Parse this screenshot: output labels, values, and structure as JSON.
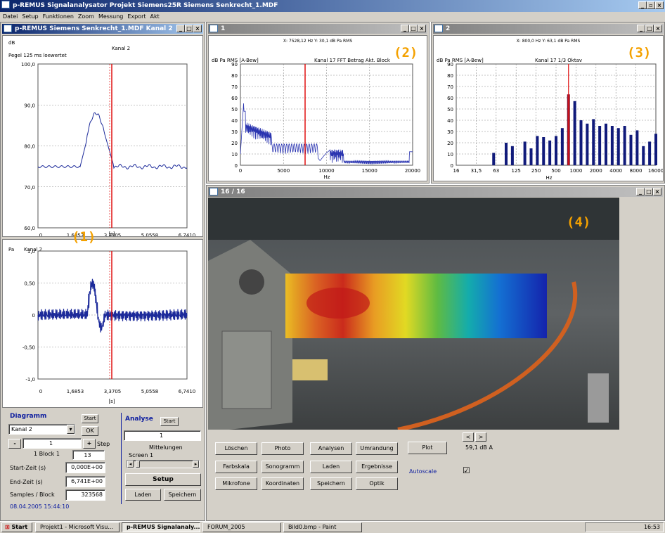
{
  "app": {
    "title": "p-REMUS Signalanalysator Projekt Siemens25R Siemens Senkrecht_1.MDF"
  },
  "menu": [
    "Datei",
    "Setup",
    "Funktionen",
    "Zoom",
    "Messung",
    "Export",
    "Akt"
  ],
  "annotations": [
    "(1)",
    "(2)",
    "(3)",
    "(4)"
  ],
  "win1": {
    "title": "p-REMUS   Siemens Senkrecht_1.MDF   Kanal 2",
    "top_unit": "dB",
    "top_channel": "Kanal 2",
    "top_note": "Pegel 125 ms loewertet",
    "yticks_top": [
      "100,0",
      "90,0",
      "80,0",
      "70,0",
      "60,0"
    ],
    "xticks": [
      "0",
      "1,6853",
      "3,3705",
      "5,0558",
      "6,7410"
    ],
    "xunit": "[s]",
    "bottom_unit": "Pa",
    "bottom_channel": "Kanal 2",
    "yticks_bottom": [
      "1,0",
      "0,50",
      "0",
      "-0,50",
      "-1,0"
    ]
  },
  "controls": {
    "diagramm": "Diagramm",
    "start": "Start",
    "kanal_value": "Kanal 2",
    "ok": "OK",
    "minus": "-",
    "block_value": "1",
    "plus": "+",
    "step": "Step",
    "block_label": "1 Block 1",
    "block_count": "13",
    "start_zeit_label": "Start-Zeit (s)",
    "start_zeit_value": "0,000E+00",
    "end_zeit_label": "End-Zeit (s)",
    "end_zeit_value": "6,741E+00",
    "samples_label": "Samples / Block",
    "samples_value": "323568",
    "datetime": "08.04.2005  15:44:10",
    "analyse": "Analyse",
    "analyse_start": "Start",
    "mitt_value": "1",
    "mitt_label": "Mittelungen",
    "screen_label": "Screen 1",
    "setup": "Setup",
    "laden": "Laden",
    "speichern": "Speichern"
  },
  "win2": {
    "title": "1",
    "cursor_readout": "X: 7528,12 Hz  Y: 30,1 dB Pa RMS",
    "ylabel": "dB Pa RMS [A-Bew]",
    "channel": "Kanal  17   FFT Betrag Akt. Block",
    "yticks": [
      "90",
      "80",
      "70",
      "60",
      "50",
      "40",
      "30",
      "20",
      "10",
      "0"
    ],
    "xticks": [
      "0",
      "5000",
      "10000",
      "15000",
      "20000"
    ],
    "xunit": "Hz"
  },
  "win3": {
    "title": "2",
    "cursor_readout": "X: 800,0 Hz  Y: 63,1 dB Pa RMS",
    "ylabel": "dB Pa RMS [A-Bew]",
    "channel": "Kanal  17   1/3 Oktav",
    "yticks": [
      "90",
      "80",
      "70",
      "60",
      "50",
      "40",
      "30",
      "20",
      "10",
      "0"
    ],
    "xticks": [
      "16",
      "31,5",
      "63",
      "125",
      "250",
      "500",
      "1000",
      "2000",
      "4000",
      "8000",
      "16000"
    ],
    "xunit": "Hz"
  },
  "win4": {
    "title": "16 / 16",
    "buttons": [
      [
        "Löschen",
        "Photo",
        "Analysen",
        "Umrandung"
      ],
      [
        "Farbskala",
        "Sonogramm",
        "Laden",
        "Ergebnisse"
      ],
      [
        "Mikrofone",
        "Koordinaten",
        "Speichern",
        "Optik"
      ]
    ],
    "plot": "Plot",
    "nav_prev": "<",
    "nav_next": ">",
    "level": "59,1 dB A",
    "autoscale_label": "Autoscale",
    "autoscale_checked": "☑"
  },
  "taskbar": {
    "start": "Start",
    "items": [
      "Projekt1 - Microsoft Visu...",
      "p-REMUS Signalanaly...",
      "FORUM_2005",
      "Bild0.bmp - Paint"
    ],
    "clock": "16:53"
  },
  "colors": {
    "accent_orange": "#f4a100",
    "plot_blue": "#1c2a9a",
    "cursor_red": "#e01010",
    "bar_navy": "#101a7a"
  }
}
